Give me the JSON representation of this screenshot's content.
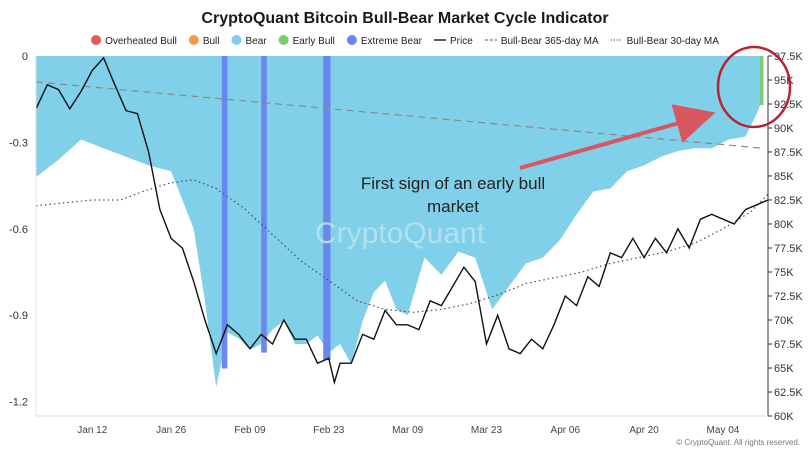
{
  "chart_data": {
    "type": "area",
    "title": "CryptoQuant Bitcoin Bull-Bear Market Cycle Indicator",
    "watermark": "CryptoQuant",
    "copyright": "© CryptoQuant. All rights reserved.",
    "annotation": {
      "line1": "First sign of an early bull",
      "line2": "market"
    },
    "legend_position": "top",
    "legend": [
      {
        "key": "overheated",
        "label": "Overheated Bull",
        "marker": "dot",
        "color": "#e05a5a"
      },
      {
        "key": "bull",
        "label": "Bull",
        "marker": "dot",
        "color": "#f29b4b"
      },
      {
        "key": "bear",
        "label": "Bear",
        "marker": "dot",
        "color": "#7fd0e8"
      },
      {
        "key": "early_bull",
        "label": "Early Bull",
        "marker": "dot",
        "color": "#7ccc72"
      },
      {
        "key": "extreme_bear",
        "label": "Extreme Bear",
        "marker": "dot",
        "color": "#6b86ee"
      },
      {
        "key": "price",
        "label": "Price",
        "marker": "solid",
        "color": "#111111"
      },
      {
        "key": "ma365",
        "label": "Bull-Bear 365-day MA",
        "marker": "dash",
        "color": "#888888"
      },
      {
        "key": "ma30",
        "label": "Bull-Bear 30-day MA",
        "marker": "dot-line",
        "color": "#555577"
      }
    ],
    "x_ticks": [
      {
        "label": "Jan 12",
        "day": 11
      },
      {
        "label": "Jan 26",
        "day": 25
      },
      {
        "label": "Feb 09",
        "day": 39
      },
      {
        "label": "Feb 23",
        "day": 53
      },
      {
        "label": "Mar 09",
        "day": 67
      },
      {
        "label": "Mar 23",
        "day": 81
      },
      {
        "label": "Apr 06",
        "day": 95
      },
      {
        "label": "Apr 20",
        "day": 109
      },
      {
        "label": "May 04",
        "day": 123
      }
    ],
    "x_range": [
      1,
      131
    ],
    "y_left": {
      "range": [
        -1.25,
        0
      ],
      "ticks": [
        "0",
        "-0.3",
        "-0.6",
        "-0.9",
        "-1.2"
      ],
      "tick_values": [
        0,
        -0.3,
        -0.6,
        -0.9,
        -1.2
      ]
    },
    "y_right": {
      "range": [
        60000,
        97500
      ],
      "ticks": [
        "97.5K",
        "95K",
        "92.5K",
        "90K",
        "87.5K",
        "85K",
        "82.5K",
        "80K",
        "77.5K",
        "75K",
        "72.5K",
        "70K",
        "67.5K",
        "65K",
        "62.5K",
        "60K"
      ],
      "tick_values": [
        97500,
        95000,
        92500,
        90000,
        87500,
        85000,
        82500,
        80000,
        77500,
        75000,
        72500,
        70000,
        67500,
        65000,
        62500,
        60000
      ]
    },
    "indicator": {
      "x": [
        1,
        5,
        9,
        13,
        17,
        21,
        25,
        29,
        31,
        33,
        35,
        37,
        39,
        41,
        43,
        45,
        47,
        49,
        51,
        53,
        55,
        57,
        59,
        61,
        63,
        65,
        67,
        70,
        73,
        76,
        79,
        82,
        85,
        88,
        91,
        94,
        97,
        100,
        103,
        106,
        109,
        112,
        115,
        118,
        121,
        124,
        127,
        129,
        130
      ],
      "y": [
        -0.42,
        -0.36,
        -0.29,
        -0.32,
        -0.35,
        -0.38,
        -0.4,
        -0.6,
        -0.85,
        -1.15,
        -0.96,
        -0.98,
        -1.02,
        -1.0,
        -0.95,
        -0.92,
        -1.0,
        -1.0,
        -0.97,
        -1.03,
        -1.0,
        -1.07,
        -0.92,
        -0.82,
        -0.78,
        -0.88,
        -0.9,
        -0.7,
        -0.76,
        -0.68,
        -0.7,
        -0.88,
        -0.8,
        -0.72,
        -0.7,
        -0.64,
        -0.55,
        -0.47,
        -0.46,
        -0.4,
        -0.38,
        -0.35,
        -0.33,
        -0.32,
        -0.32,
        -0.29,
        -0.28,
        -0.2,
        -0.15
      ]
    },
    "extreme_bear_bands": [
      {
        "from": 34,
        "to": 35
      },
      {
        "from": 41,
        "to": 42
      },
      {
        "from": 52,
        "to": 53.3
      }
    ],
    "early_bull_band": {
      "from": 129.6,
      "to": 130.2
    },
    "price": {
      "x": [
        1,
        3,
        5,
        7,
        9,
        11,
        13,
        15,
        17,
        19,
        21,
        23,
        25,
        27,
        29,
        31,
        33,
        34,
        35,
        37,
        39,
        41,
        43,
        45,
        47,
        49,
        51,
        53,
        54,
        55,
        57,
        59,
        61,
        63,
        65,
        67,
        69,
        71,
        73,
        75,
        77,
        79,
        81,
        83,
        85,
        87,
        89,
        91,
        93,
        95,
        97,
        99,
        101,
        103,
        105,
        107,
        109,
        111,
        113,
        115,
        117,
        119,
        121,
        123,
        125,
        127,
        129,
        131
      ],
      "y": [
        92000,
        94500,
        94000,
        92000,
        93800,
        96000,
        97300,
        94500,
        91800,
        91500,
        87500,
        81500,
        78500,
        77500,
        74000,
        70000,
        66500,
        68000,
        69500,
        68500,
        67000,
        68500,
        67500,
        70000,
        68000,
        68000,
        65500,
        66000,
        63500,
        65500,
        65500,
        68500,
        68000,
        71000,
        69500,
        69500,
        69000,
        72000,
        71500,
        73500,
        75500,
        74000,
        67500,
        70500,
        67000,
        66500,
        68000,
        67000,
        69500,
        72500,
        71500,
        74500,
        73500,
        77000,
        76500,
        78500,
        76500,
        78500,
        77000,
        79500,
        77500,
        80500,
        81000,
        80500,
        80000,
        81500,
        82000,
        82500
      ]
    },
    "ma365": {
      "x": [
        1,
        130
      ],
      "y": [
        -0.09,
        -0.32
      ]
    },
    "ma30": {
      "x": [
        1,
        6,
        11,
        16,
        20,
        25,
        29,
        33,
        38,
        43,
        48,
        53,
        58,
        63,
        68,
        73,
        78,
        83,
        88,
        93,
        98,
        103,
        108,
        113,
        118,
        123,
        128,
        131
      ],
      "y": [
        -0.52,
        -0.51,
        -0.5,
        -0.5,
        -0.47,
        -0.44,
        -0.43,
        -0.46,
        -0.53,
        -0.62,
        -0.71,
        -0.78,
        -0.85,
        -0.88,
        -0.89,
        -0.88,
        -0.86,
        -0.83,
        -0.79,
        -0.77,
        -0.75,
        -0.72,
        -0.7,
        -0.68,
        -0.65,
        -0.6,
        -0.54,
        -0.48
      ]
    }
  }
}
